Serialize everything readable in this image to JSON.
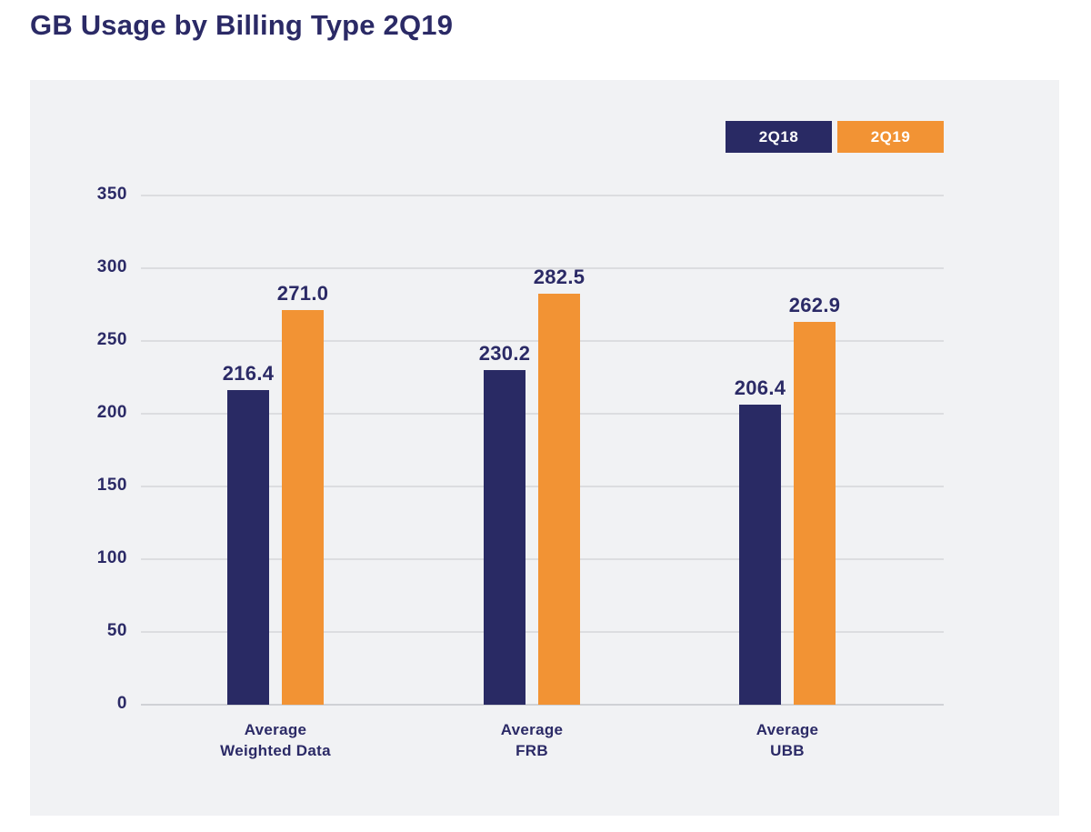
{
  "page": {
    "title": "GB Usage by Billing Type 2Q19"
  },
  "colors": {
    "series_2q18": "#292a64",
    "series_2q19": "#f29334",
    "text_navy": "#2b2a66",
    "panel_background": "#f1f2f4",
    "gridline": "#dcdde0",
    "baseline": "#cfd1d5",
    "legend_text": "#ffffff"
  },
  "chart_data": {
    "type": "bar",
    "title": "GB Usage by Billing Type 2Q19",
    "xlabel": "",
    "ylabel": "",
    "categories": [
      "Average Weighted Data",
      "Average FRB",
      "Average UBB"
    ],
    "category_lines": [
      [
        "Average",
        "Weighted Data"
      ],
      [
        "Average",
        "FRB"
      ],
      [
        "Average",
        "UBB"
      ]
    ],
    "series": [
      {
        "name": "2Q18",
        "color": "#292a64",
        "values": [
          216.4,
          230.2,
          206.4
        ]
      },
      {
        "name": "2Q19",
        "color": "#f29334",
        "values": [
          271.0,
          282.5,
          262.9
        ]
      }
    ],
    "value_labels": [
      "216.4",
      "271.0",
      "230.2",
      "282.5",
      "206.4",
      "262.9"
    ],
    "y_ticks": [
      0,
      50,
      100,
      150,
      200,
      250,
      300,
      350
    ],
    "ylim": [
      0,
      350
    ],
    "grid": true,
    "legend_position": "top-right",
    "value_label_decimals": 1
  }
}
